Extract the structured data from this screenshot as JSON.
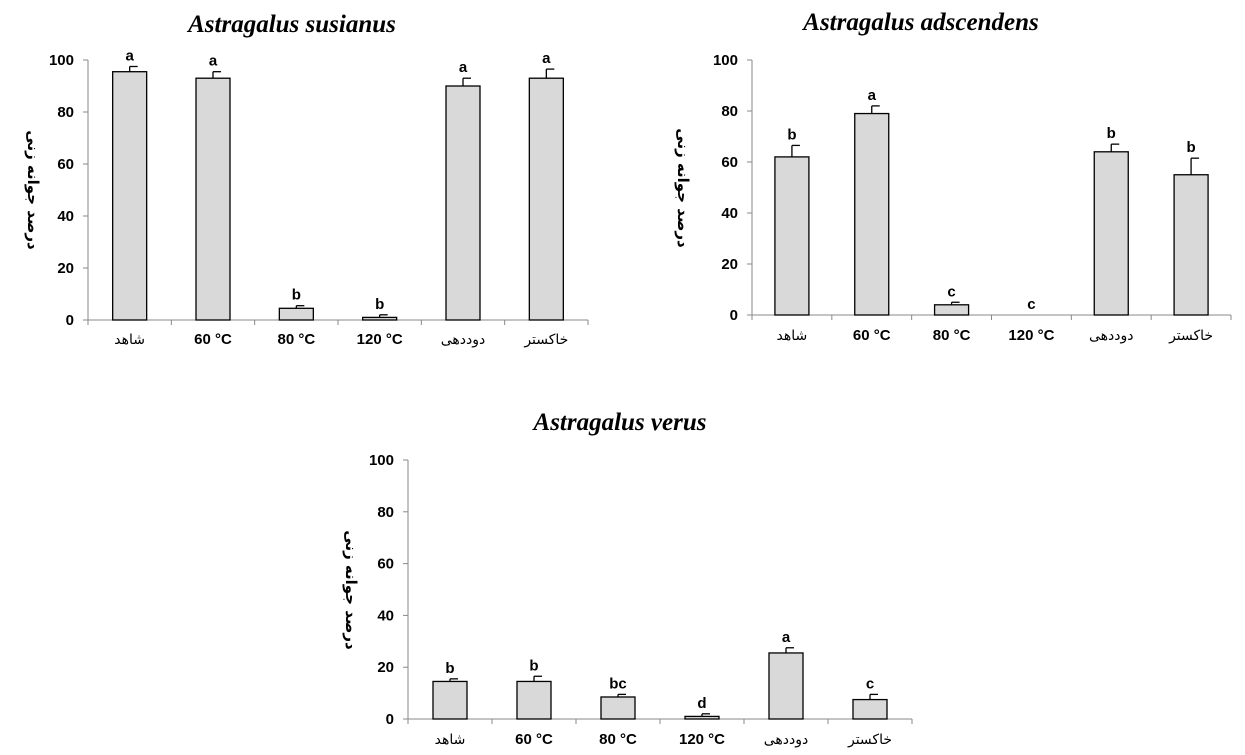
{
  "chart_data": [
    {
      "type": "bar",
      "title": "Astragalus susianus",
      "ylabel": "درصد جوانه زنی",
      "ylim": [
        0,
        100
      ],
      "yticks": [
        0,
        20,
        40,
        60,
        80,
        100
      ],
      "categories": [
        "شاهد",
        "60 °C",
        "80 °C",
        "120 °C",
        "دوددهی",
        "خاکستر"
      ],
      "values": [
        95.5,
        93,
        4.5,
        1,
        90,
        93
      ],
      "errors": [
        2,
        2.5,
        1,
        1,
        3,
        3.5
      ],
      "labels": [
        "a",
        "a",
        "b",
        "b",
        "a",
        "a"
      ]
    },
    {
      "type": "bar",
      "title": "Astragalus adscendens",
      "ylabel": "درصد جوانه زنی",
      "ylim": [
        0,
        100
      ],
      "yticks": [
        0,
        20,
        40,
        60,
        80,
        100
      ],
      "categories": [
        "شاهد",
        "60 °C",
        "80 °C",
        "120 °C",
        "دوددهی",
        "خاکستر"
      ],
      "values": [
        62,
        79,
        4,
        0,
        64,
        55
      ],
      "errors": [
        4.5,
        3,
        1,
        0,
        3,
        6.5
      ],
      "labels": [
        "b",
        "a",
        "c",
        "c",
        "b",
        "b"
      ]
    },
    {
      "type": "bar",
      "title": "Astragalus verus",
      "ylabel": "درصد جوانه زنی",
      "ylim": [
        0,
        100
      ],
      "yticks": [
        0,
        20,
        40,
        60,
        80,
        100
      ],
      "categories": [
        "شاهد",
        "60 °C",
        "80 °C",
        "120 °C",
        "دوددهی",
        "خاکستر"
      ],
      "values": [
        14.5,
        14.5,
        8.5,
        1,
        25.5,
        7.5
      ],
      "errors": [
        1,
        2,
        1,
        1,
        2,
        2
      ],
      "labels": [
        "b",
        "b",
        "bc",
        "d",
        "a",
        "c"
      ]
    }
  ],
  "colors": {
    "bar_fill": "#d9d9d9",
    "bar_stroke": "#000000",
    "axis": "#888888"
  }
}
